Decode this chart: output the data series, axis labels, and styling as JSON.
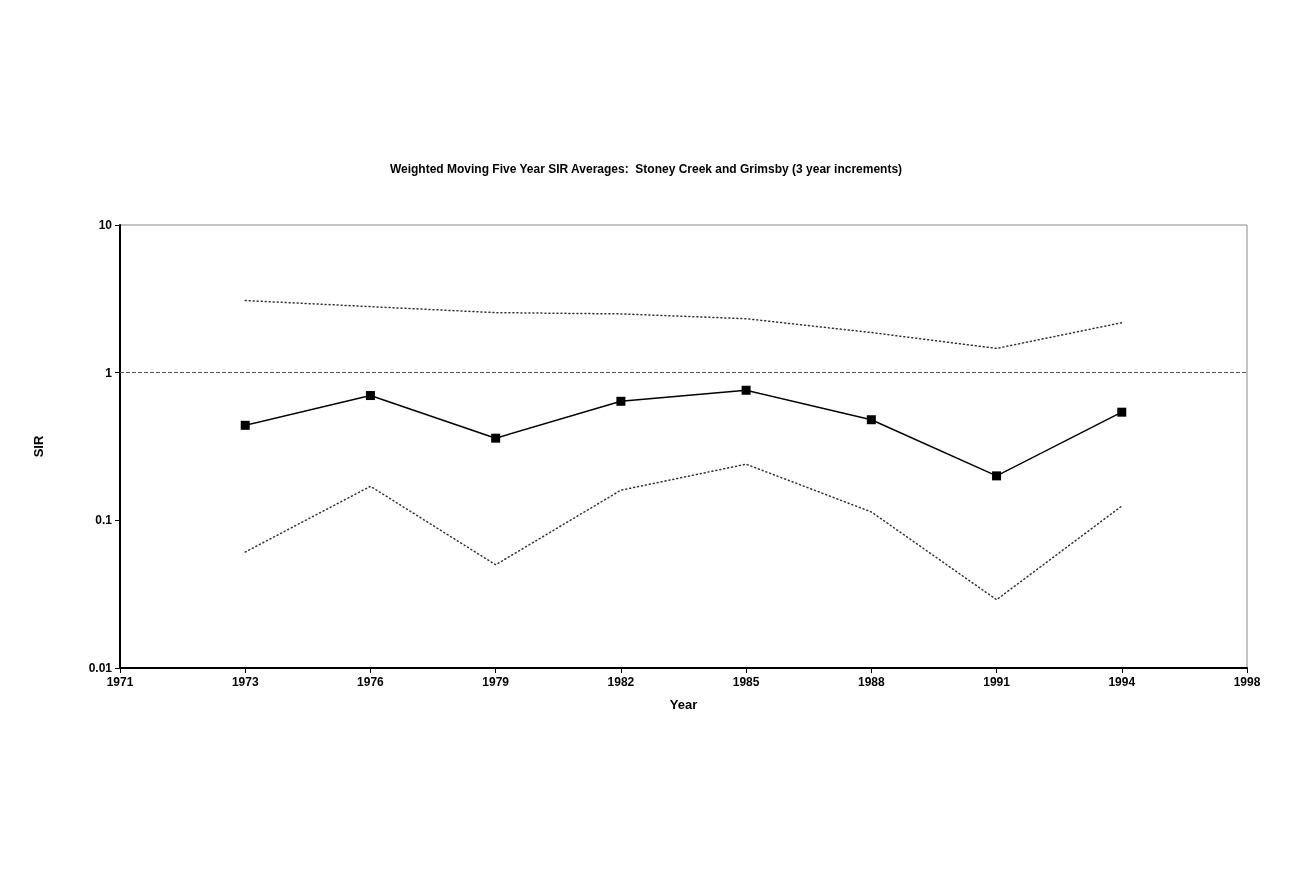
{
  "chart_data": {
    "type": "line",
    "title": "Weighted Moving Five Year SIR Averages:  Stoney Creek and Grimsby (3 year increments)",
    "xlabel": "Year",
    "ylabel": "SIR",
    "categories": [
      "1971",
      "1973",
      "1976",
      "1979",
      "1982",
      "1985",
      "1988",
      "1991",
      "1994",
      "1998"
    ],
    "series": [
      {
        "color": "#000000",
        "values": [
          null,
          0.44,
          0.7,
          0.36,
          0.64,
          0.76,
          0.48,
          0.2,
          0.54,
          null
        ],
        "marker": "square",
        "line_style": "solid"
      },
      {
        "color": "#333333",
        "values": [
          null,
          3.08,
          2.8,
          2.55,
          2.5,
          2.32,
          1.87,
          1.46,
          2.18,
          null
        ],
        "marker": "none",
        "line_style": "dotted"
      },
      {
        "color": "#333333",
        "values": [
          null,
          0.061,
          0.17,
          0.05,
          0.16,
          0.24,
          0.114,
          0.029,
          0.125,
          null
        ],
        "marker": "none",
        "line_style": "dotted"
      }
    ],
    "log": "y",
    "ylim": [
      0.01,
      10
    ],
    "yticks": [
      0.01,
      0.1,
      1,
      10
    ],
    "ref_lines": [
      {
        "axis": "y",
        "value": 1,
        "label": null,
        "color": "#555555",
        "line_style": "dashed"
      }
    ],
    "grid": false
  }
}
